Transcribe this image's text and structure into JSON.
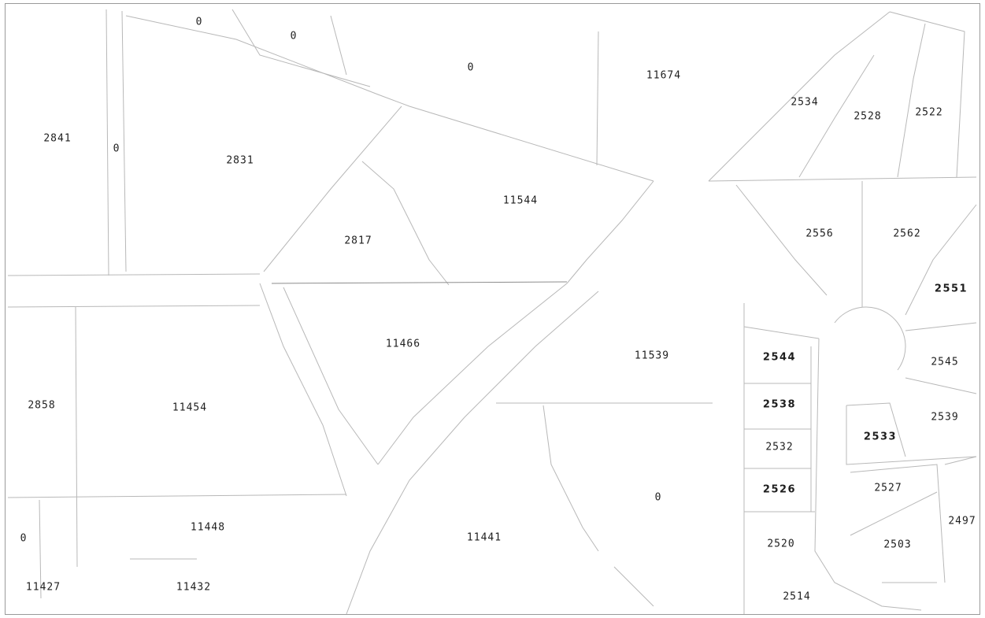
{
  "parcels": [
    {
      "label": "0"
    },
    {
      "label": "0"
    },
    {
      "label": "0"
    },
    {
      "label": "11674"
    },
    {
      "label": "2534"
    },
    {
      "label": "2528"
    },
    {
      "label": "2522"
    },
    {
      "label": "2841"
    },
    {
      "label": "0"
    },
    {
      "label": "2831"
    },
    {
      "label": "11544"
    },
    {
      "label": "2817"
    },
    {
      "label": "2556"
    },
    {
      "label": "2562"
    },
    {
      "label": "2551"
    },
    {
      "label": "11466"
    },
    {
      "label": "11539"
    },
    {
      "label": "2544"
    },
    {
      "label": "2545"
    },
    {
      "label": "2858"
    },
    {
      "label": "11454"
    },
    {
      "label": "2538"
    },
    {
      "label": "2539"
    },
    {
      "label": "2533"
    },
    {
      "label": "2532"
    },
    {
      "label": "0"
    },
    {
      "label": "2526"
    },
    {
      "label": "2527"
    },
    {
      "label": "2497"
    },
    {
      "label": "11448"
    },
    {
      "label": "0"
    },
    {
      "label": "11441"
    },
    {
      "label": "2520"
    },
    {
      "label": "2503"
    },
    {
      "label": "11427"
    },
    {
      "label": "11432"
    },
    {
      "label": "2514"
    }
  ]
}
